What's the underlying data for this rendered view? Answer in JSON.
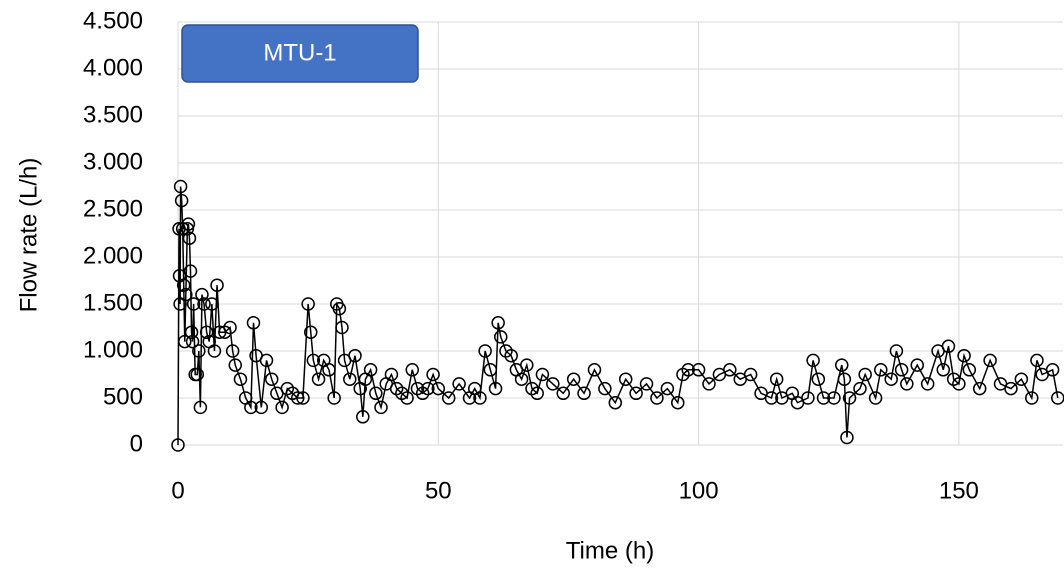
{
  "chart_data": {
    "type": "scatter-line",
    "annotation": "MTU-1",
    "xlabel": "Time (h)",
    "ylabel": "Flow rate (L/h)",
    "color": "#000000",
    "grid": true,
    "xlim": [
      0,
      170
    ],
    "ylim": [
      0,
      4500
    ],
    "xticks": [
      0,
      50,
      100,
      150
    ],
    "yticks": [
      0,
      500,
      {
        "value": 1000,
        "label": "1.000"
      },
      {
        "value": 1500,
        "label": "1.500"
      },
      {
        "value": 2000,
        "label": "2.000"
      },
      {
        "value": 2500,
        "label": "2.500"
      },
      {
        "value": 3000,
        "label": "3.000"
      },
      {
        "value": 3500,
        "label": "3.500"
      },
      {
        "value": 4000,
        "label": "4.000"
      },
      {
        "value": 4500,
        "label": "4.500"
      }
    ],
    "x": [
      0,
      0.2,
      0.3,
      0.4,
      0.5,
      0.7,
      0.9,
      1.1,
      1.3,
      1.5,
      1.8,
      2,
      2.2,
      2.4,
      2.6,
      2.8,
      3,
      3.3,
      3.7,
      4,
      4.3,
      4.6,
      5,
      5.5,
      6,
      6.5,
      7,
      7.5,
      8,
      9,
      10,
      10.5,
      11,
      12,
      13,
      14,
      14.5,
      15,
      16,
      17,
      18,
      19,
      20,
      21,
      22,
      23,
      24,
      25,
      25.5,
      26,
      27,
      28,
      29,
      30,
      30.5,
      31,
      31.5,
      32,
      33,
      34,
      35,
      35.5,
      36,
      37,
      38,
      39,
      40,
      41,
      42,
      43,
      44,
      45,
      46,
      47,
      48,
      49,
      50,
      52,
      54,
      56,
      57,
      58,
      59,
      60,
      61,
      61.5,
      62,
      63,
      64,
      65,
      66,
      67,
      68,
      69,
      70,
      72,
      74,
      76,
      78,
      80,
      82,
      84,
      86,
      88,
      90,
      92,
      94,
      96,
      97,
      98,
      100,
      102,
      104,
      106,
      108,
      110,
      112,
      114,
      115,
      116,
      118,
      119,
      121,
      122,
      123,
      124,
      126,
      127.5,
      128,
      128.5,
      129,
      131,
      132,
      134,
      135,
      137,
      138,
      139,
      140,
      142,
      144,
      146,
      147,
      148,
      149,
      150,
      151,
      152,
      154,
      156,
      158,
      160,
      162,
      164,
      165,
      166,
      168,
      169
    ],
    "values": [
      0,
      2300,
      1800,
      1500,
      2750,
      2600,
      2300,
      1700,
      1100,
      1600,
      2300,
      2350,
      2200,
      1850,
      1200,
      1100,
      1500,
      750,
      750,
      1000,
      400,
      1600,
      1500,
      1200,
      1100,
      1500,
      1000,
      1700,
      1200,
      1200,
      1250,
      1000,
      850,
      700,
      500,
      400,
      1300,
      950,
      400,
      900,
      700,
      550,
      400,
      600,
      550,
      500,
      500,
      1500,
      1200,
      900,
      700,
      900,
      800,
      500,
      1500,
      1450,
      1250,
      900,
      700,
      950,
      600,
      300,
      700,
      800,
      550,
      400,
      650,
      750,
      600,
      550,
      500,
      800,
      600,
      550,
      600,
      750,
      600,
      500,
      650,
      500,
      600,
      500,
      1000,
      800,
      600,
      1300,
      1150,
      1000,
      950,
      800,
      700,
      850,
      600,
      550,
      750,
      650,
      550,
      700,
      550,
      800,
      600,
      450,
      700,
      550,
      650,
      500,
      600,
      450,
      750,
      800,
      800,
      650,
      750,
      800,
      700,
      750,
      550,
      500,
      700,
      500,
      550,
      450,
      500,
      900,
      700,
      500,
      500,
      850,
      700,
      80,
      500,
      600,
      750,
      500,
      800,
      700,
      1000,
      800,
      650,
      850,
      650,
      1000,
      800,
      1050,
      700,
      650,
      950,
      800,
      600,
      900,
      650,
      600,
      700,
      500,
      900,
      750,
      800,
      500
    ]
  }
}
